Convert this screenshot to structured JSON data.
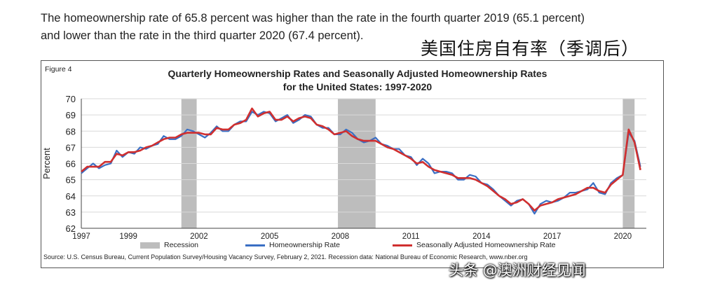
{
  "intro": {
    "line1": "The homeownership rate of 65.8 percent was higher than the rate in the fourth quarter 2019 (65.1 percent)",
    "line2": "and lower than the rate in the third quarter 2020 (67.4 percent)."
  },
  "cn_caption": "美国住房自有率（季调后）",
  "figure_label": "Figure 4",
  "source_note": "Source: U.S. Census Bureau, Current Population Survey/Housing Vacancy Survey, February 2, 2021. Recession data: National Bureau of Economic Research, www.nber.org",
  "watermark": "头条 @澳洲财经见闻",
  "chart_data": {
    "type": "line",
    "title": "Quarterly Homeownership Rates and Seasonally Adjusted Homeownership Rates",
    "subtitle": "for the United States: 1997-2020",
    "ylabel": "Percent",
    "xlabel": "",
    "ylim": [
      62,
      70
    ],
    "xlim": [
      1997,
      2021
    ],
    "yticks": [
      62,
      63,
      64,
      65,
      66,
      67,
      68,
      69,
      70
    ],
    "xticks": [
      1997,
      1999,
      2002,
      2005,
      2008,
      2011,
      2014,
      2017,
      2020
    ],
    "grid": true,
    "legend_position": "bottom",
    "recessions": [
      {
        "start": 2001.25,
        "end": 2001.9
      },
      {
        "start": 2007.9,
        "end": 2009.5
      },
      {
        "start": 2020.0,
        "end": 2020.5
      }
    ],
    "legend": [
      "Recession",
      "Homeownership Rate",
      "Seasonally Adjusted Homeownership Rate"
    ],
    "series": [
      {
        "name": "Homeownership Rate",
        "color": "#3a6fc4",
        "x": [
          1997.0,
          1997.25,
          1997.5,
          1997.75,
          1998.0,
          1998.25,
          1998.5,
          1998.75,
          1999.0,
          1999.25,
          1999.5,
          1999.75,
          2000.0,
          2000.25,
          2000.5,
          2000.75,
          2001.0,
          2001.25,
          2001.5,
          2001.75,
          2002.0,
          2002.25,
          2002.5,
          2002.75,
          2003.0,
          2003.25,
          2003.5,
          2003.75,
          2004.0,
          2004.25,
          2004.5,
          2004.75,
          2005.0,
          2005.25,
          2005.5,
          2005.75,
          2006.0,
          2006.25,
          2006.5,
          2006.75,
          2007.0,
          2007.25,
          2007.5,
          2007.75,
          2008.0,
          2008.25,
          2008.5,
          2008.75,
          2009.0,
          2009.25,
          2009.5,
          2009.75,
          2010.0,
          2010.25,
          2010.5,
          2010.75,
          2011.0,
          2011.25,
          2011.5,
          2011.75,
          2012.0,
          2012.25,
          2012.5,
          2012.75,
          2013.0,
          2013.25,
          2013.5,
          2013.75,
          2014.0,
          2014.25,
          2014.5,
          2014.75,
          2015.0,
          2015.25,
          2015.5,
          2015.75,
          2016.0,
          2016.25,
          2016.5,
          2016.75,
          2017.0,
          2017.25,
          2017.5,
          2017.75,
          2018.0,
          2018.25,
          2018.5,
          2018.75,
          2019.0,
          2019.25,
          2019.5,
          2019.75,
          2020.0,
          2020.25,
          2020.5,
          2020.75
        ],
        "values": [
          65.4,
          65.7,
          66.0,
          65.7,
          65.9,
          66.0,
          66.8,
          66.4,
          66.7,
          66.6,
          67.0,
          66.9,
          67.1,
          67.2,
          67.7,
          67.5,
          67.5,
          67.7,
          68.1,
          68.0,
          67.8,
          67.6,
          67.9,
          68.3,
          68.0,
          68.0,
          68.4,
          68.6,
          68.6,
          69.2,
          69.0,
          69.2,
          69.1,
          68.6,
          68.8,
          69.0,
          68.5,
          68.7,
          69.0,
          68.9,
          68.4,
          68.2,
          68.2,
          67.8,
          67.8,
          68.1,
          67.9,
          67.5,
          67.3,
          67.4,
          67.6,
          67.2,
          67.1,
          66.9,
          66.9,
          66.5,
          66.4,
          65.9,
          66.3,
          66.0,
          65.4,
          65.5,
          65.5,
          65.4,
          65.0,
          65.0,
          65.3,
          65.2,
          64.8,
          64.7,
          64.4,
          64.0,
          63.7,
          63.4,
          63.7,
          63.8,
          63.5,
          62.9,
          63.5,
          63.7,
          63.6,
          63.7,
          63.9,
          64.2,
          64.2,
          64.3,
          64.4,
          64.8,
          64.2,
          64.1,
          64.8,
          65.1,
          65.3,
          67.9,
          67.4,
          65.8
        ]
      },
      {
        "name": "Seasonally Adjusted Homeownership Rate",
        "color": "#d02f2f",
        "x": [
          1997.0,
          1997.25,
          1997.5,
          1997.75,
          1998.0,
          1998.25,
          1998.5,
          1998.75,
          1999.0,
          1999.25,
          1999.5,
          1999.75,
          2000.0,
          2000.25,
          2000.5,
          2000.75,
          2001.0,
          2001.25,
          2001.5,
          2001.75,
          2002.0,
          2002.25,
          2002.5,
          2002.75,
          2003.0,
          2003.25,
          2003.5,
          2003.75,
          2004.0,
          2004.25,
          2004.5,
          2004.75,
          2005.0,
          2005.25,
          2005.5,
          2005.75,
          2006.0,
          2006.25,
          2006.5,
          2006.75,
          2007.0,
          2007.25,
          2007.5,
          2007.75,
          2008.0,
          2008.25,
          2008.5,
          2008.75,
          2009.0,
          2009.25,
          2009.5,
          2009.75,
          2010.0,
          2010.25,
          2010.5,
          2010.75,
          2011.0,
          2011.25,
          2011.5,
          2011.75,
          2012.0,
          2012.25,
          2012.5,
          2012.75,
          2013.0,
          2013.25,
          2013.5,
          2013.75,
          2014.0,
          2014.25,
          2014.5,
          2014.75,
          2015.0,
          2015.25,
          2015.5,
          2015.75,
          2016.0,
          2016.25,
          2016.5,
          2016.75,
          2017.0,
          2017.25,
          2017.5,
          2017.75,
          2018.0,
          2018.25,
          2018.5,
          2018.75,
          2019.0,
          2019.25,
          2019.5,
          2019.75,
          2020.0,
          2020.25,
          2020.5,
          2020.75
        ],
        "values": [
          65.5,
          65.8,
          65.8,
          65.8,
          66.1,
          66.1,
          66.6,
          66.5,
          66.7,
          66.7,
          66.8,
          67.0,
          67.1,
          67.3,
          67.5,
          67.6,
          67.6,
          67.8,
          67.9,
          67.9,
          67.9,
          67.8,
          67.8,
          68.2,
          68.1,
          68.1,
          68.4,
          68.5,
          68.7,
          69.4,
          68.9,
          69.1,
          69.2,
          68.7,
          68.7,
          68.9,
          68.6,
          68.8,
          68.9,
          68.8,
          68.4,
          68.3,
          68.1,
          67.8,
          67.9,
          68.0,
          67.7,
          67.5,
          67.4,
          67.4,
          67.4,
          67.2,
          67.0,
          66.9,
          66.7,
          66.5,
          66.3,
          66.0,
          66.1,
          65.8,
          65.6,
          65.5,
          65.4,
          65.3,
          65.1,
          65.1,
          65.1,
          65.0,
          64.8,
          64.6,
          64.3,
          64.0,
          63.8,
          63.5,
          63.6,
          63.8,
          63.5,
          63.1,
          63.4,
          63.5,
          63.6,
          63.8,
          63.9,
          64.0,
          64.1,
          64.3,
          64.5,
          64.5,
          64.3,
          64.2,
          64.7,
          65.0,
          65.3,
          68.1,
          67.3,
          65.6
        ]
      }
    ]
  }
}
